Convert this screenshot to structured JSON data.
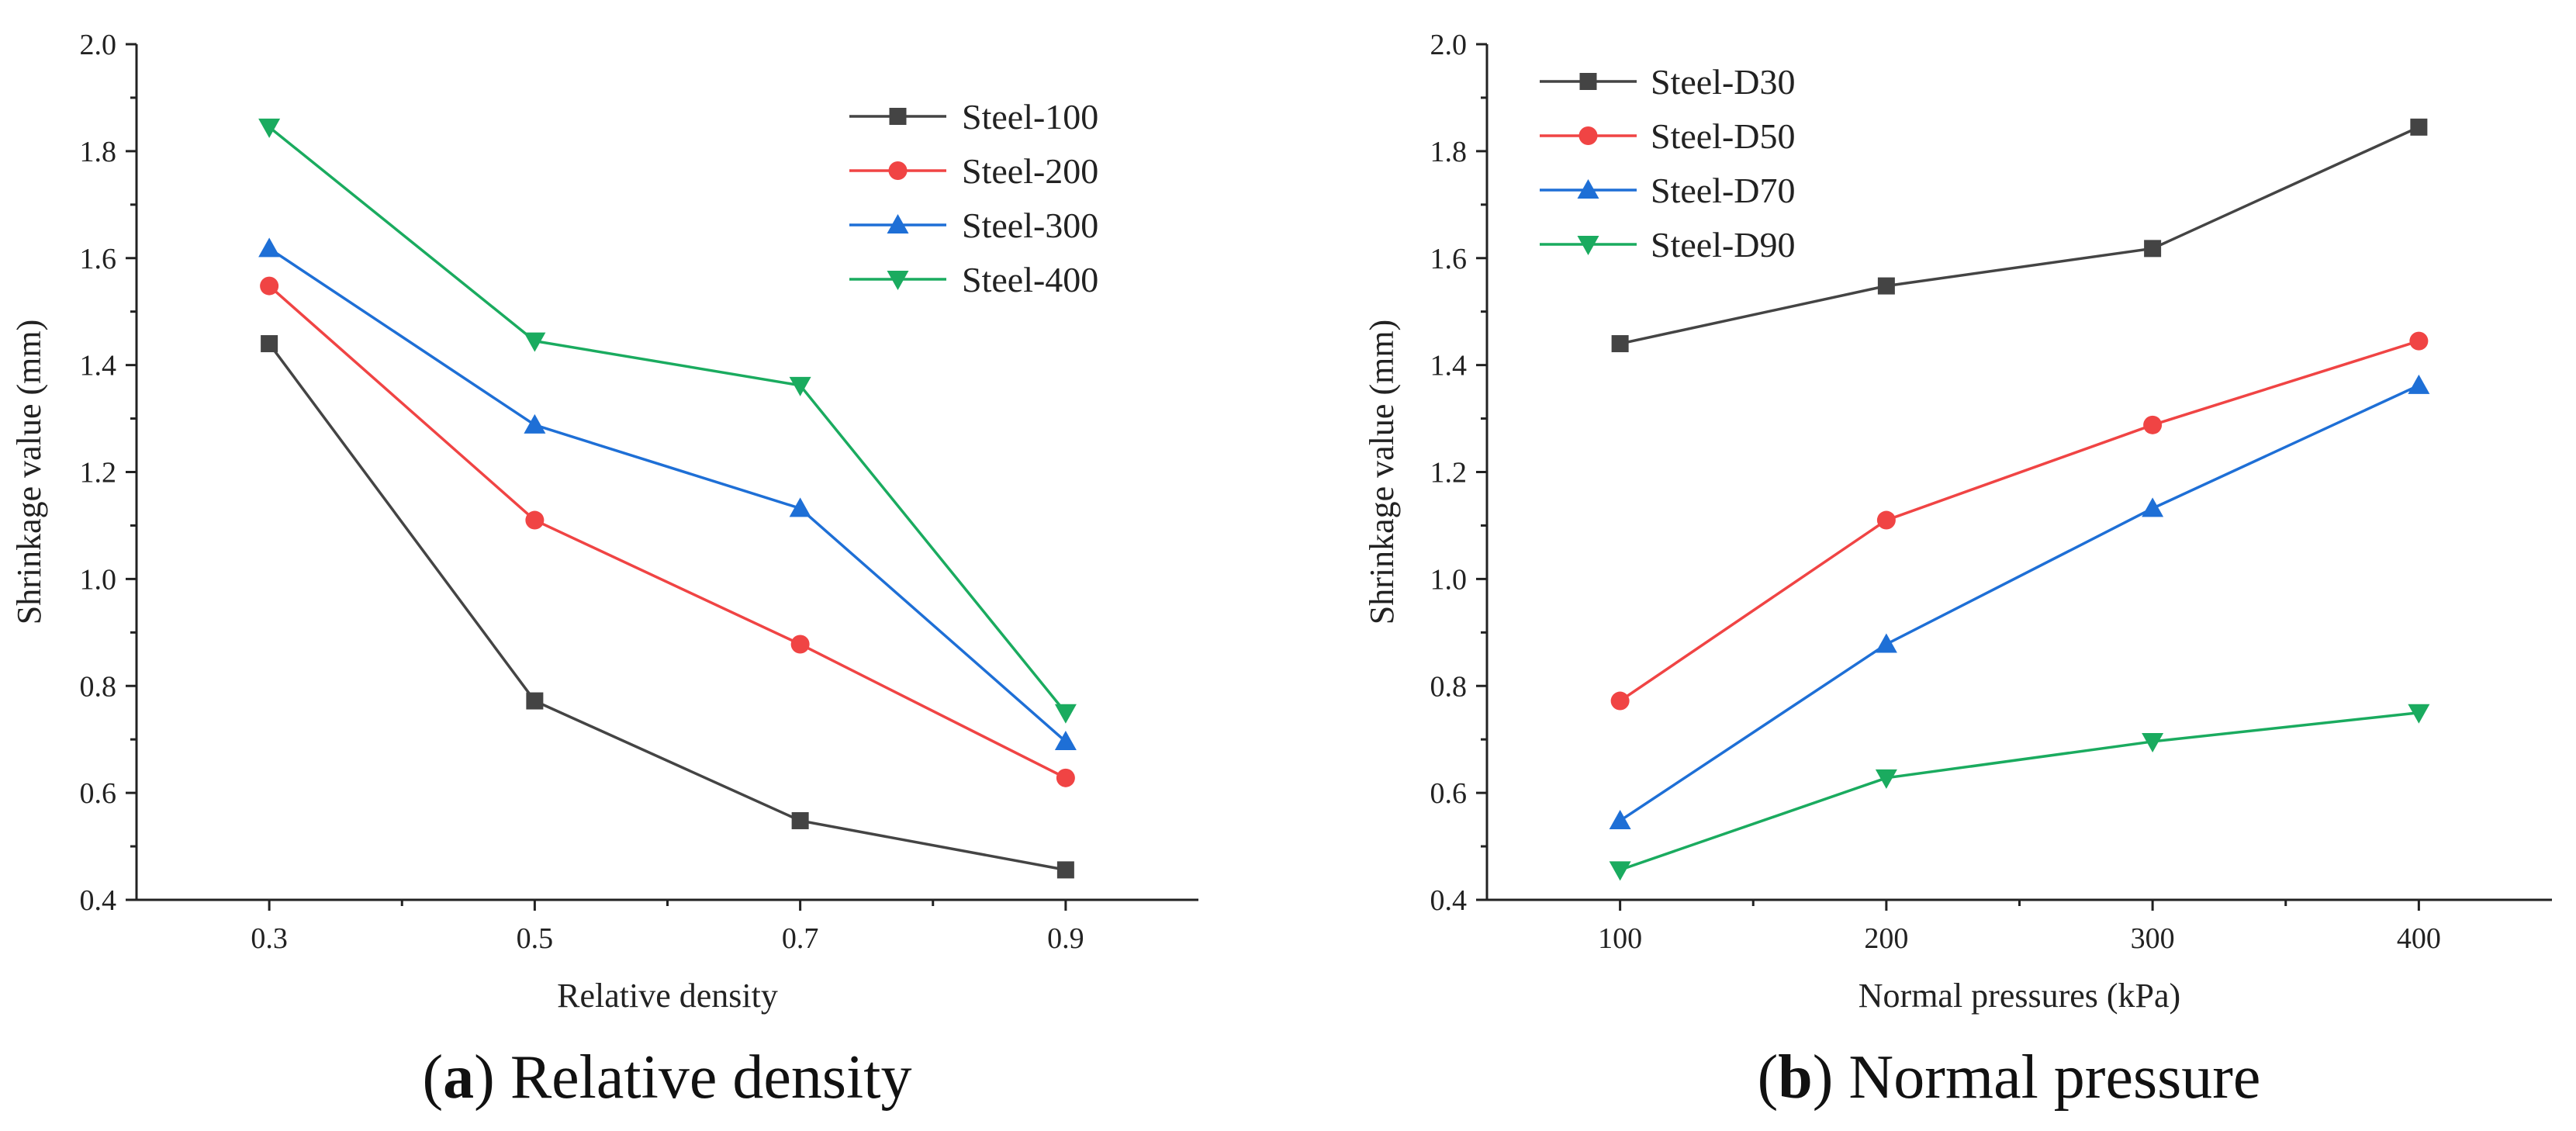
{
  "chart_data": [
    {
      "type": "line",
      "xlabel": "Relative density",
      "ylabel": "Shrinkage value (mm)",
      "x": [
        0.3,
        0.5,
        0.7,
        0.9
      ],
      "x_tick_labels": [
        "0.3",
        "0.5",
        "0.7",
        "0.9"
      ],
      "xlim": [
        0.2,
        1.0
      ],
      "ylim": [
        0.4,
        2.0
      ],
      "y_ticks": [
        "0.4",
        "0.6",
        "0.8",
        "1.0",
        "1.2",
        "1.4",
        "1.6",
        "1.8",
        "2.0"
      ],
      "legend_position": "top-right",
      "caption_letter": "a",
      "caption_text": "Relative density",
      "series": [
        {
          "name": "Steel-100",
          "color": "#444444",
          "marker": "square",
          "values": [
            1.44,
            0.772,
            0.548,
            0.456
          ]
        },
        {
          "name": "Steel-200",
          "color": "#f04444",
          "marker": "circle",
          "values": [
            1.548,
            1.11,
            0.878,
            0.628
          ]
        },
        {
          "name": "Steel-300",
          "color": "#1e6fd6",
          "marker": "triangle-up",
          "values": [
            1.618,
            1.288,
            1.132,
            0.696
          ]
        },
        {
          "name": "Steel-400",
          "color": "#1aab5f",
          "marker": "triangle-down",
          "values": [
            1.845,
            1.445,
            1.362,
            0.75
          ]
        }
      ]
    },
    {
      "type": "line",
      "xlabel": "Normal pressures (kPa)",
      "ylabel": "Shrinkage value (mm)",
      "x": [
        100,
        200,
        300,
        400
      ],
      "x_tick_labels": [
        "100",
        "200",
        "300",
        "400"
      ],
      "xlim": [
        50,
        450
      ],
      "ylim": [
        0.4,
        2.0
      ],
      "y_ticks": [
        "0.4",
        "0.6",
        "0.8",
        "1.0",
        "1.2",
        "1.4",
        "1.6",
        "1.8",
        "2.0"
      ],
      "legend_position": "top-left",
      "caption_letter": "b",
      "caption_text": "Normal pressure",
      "series": [
        {
          "name": "Steel-D30",
          "color": "#444444",
          "marker": "square",
          "values": [
            1.44,
            1.548,
            1.618,
            1.845
          ]
        },
        {
          "name": "Steel-D50",
          "color": "#f04444",
          "marker": "circle",
          "values": [
            0.772,
            1.11,
            1.288,
            1.445
          ]
        },
        {
          "name": "Steel-D70",
          "color": "#1e6fd6",
          "marker": "triangle-up",
          "values": [
            0.548,
            0.878,
            1.132,
            1.362
          ]
        },
        {
          "name": "Steel-D90",
          "color": "#1aab5f",
          "marker": "triangle-down",
          "values": [
            0.456,
            0.628,
            0.696,
            0.75
          ]
        }
      ]
    }
  ]
}
